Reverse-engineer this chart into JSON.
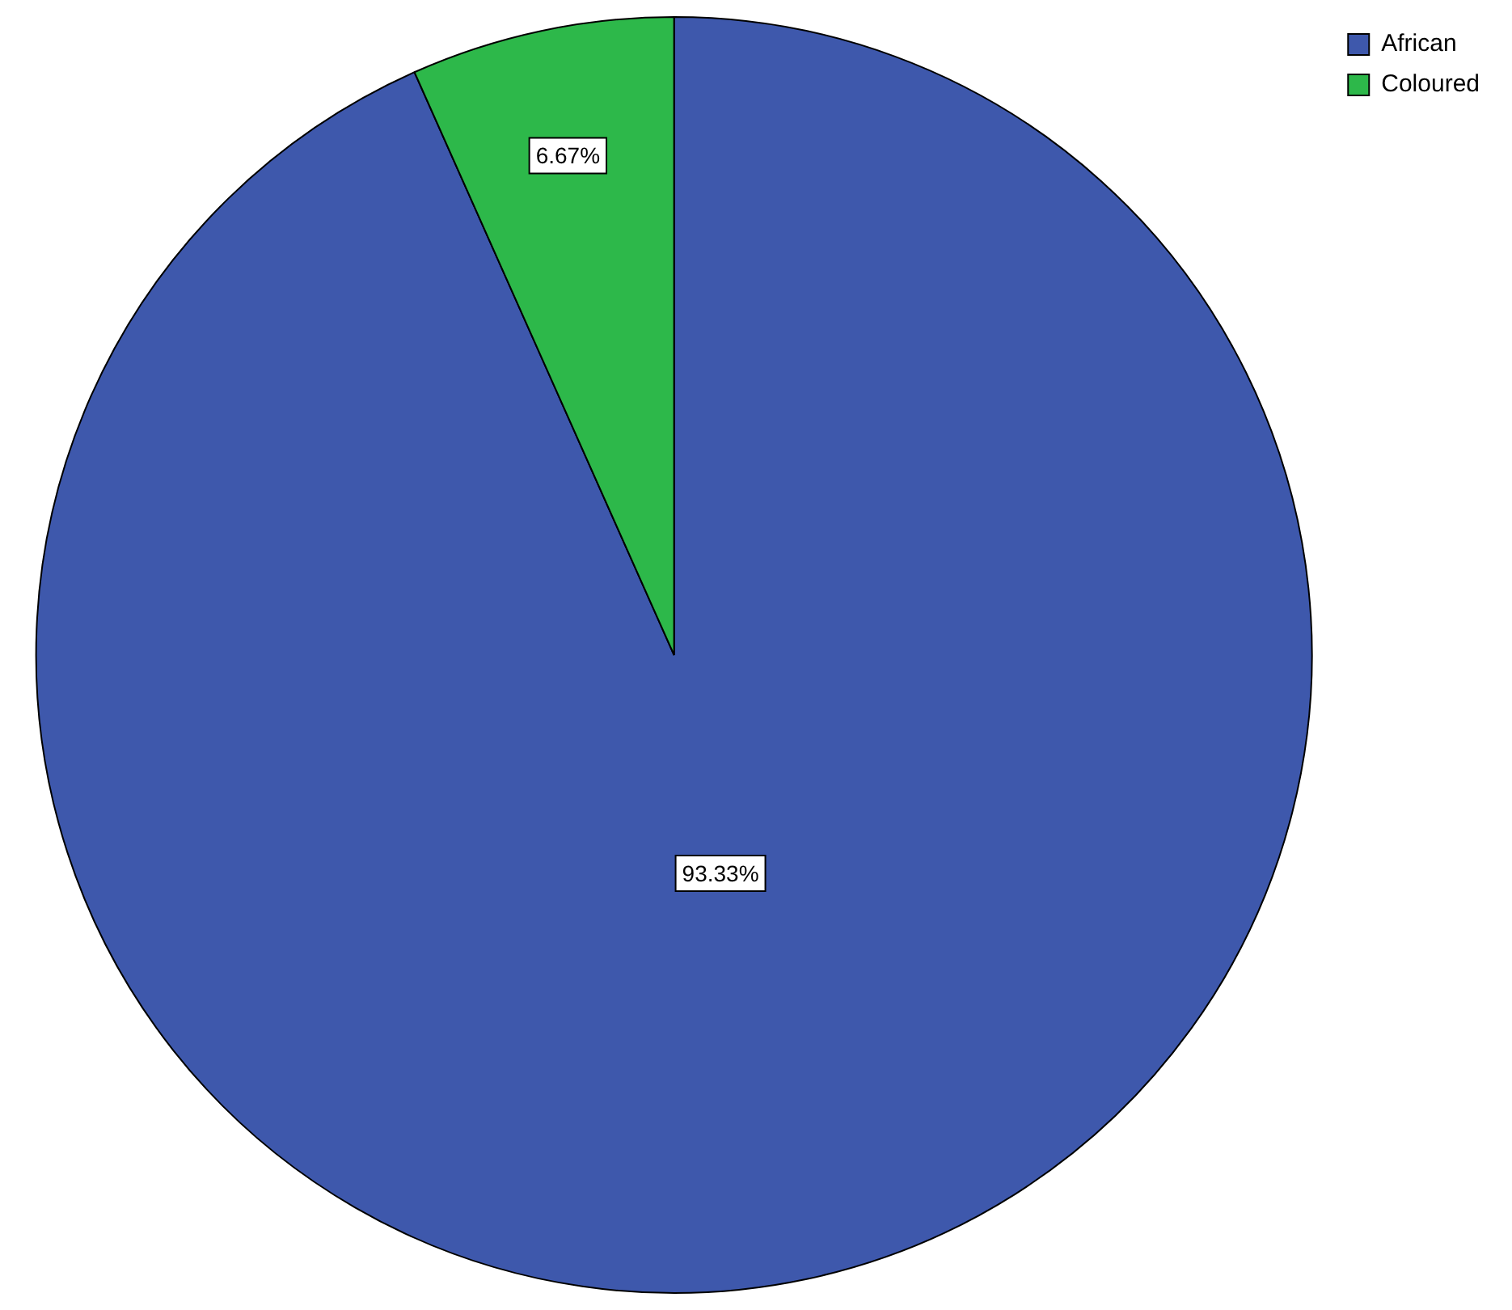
{
  "chart_data": {
    "type": "pie",
    "categories": [
      "African",
      "Coloured"
    ],
    "values": [
      93.33,
      6.67
    ],
    "colors": [
      "#3e58ac",
      "#2db84a"
    ],
    "value_labels": [
      "93.33%",
      "6.67%"
    ],
    "legend": "top right"
  }
}
